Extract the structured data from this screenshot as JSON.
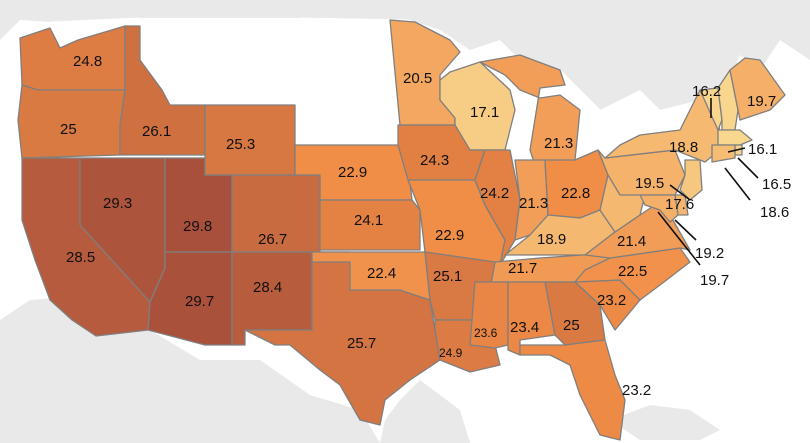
{
  "map": {
    "legend_scale": {
      "min": 16.1,
      "max": 29.8,
      "low_color": "#f8d78f",
      "high_color": "#a8503b"
    },
    "states": [
      {
        "id": "WA",
        "value": "24.8"
      },
      {
        "id": "OR",
        "value": "25"
      },
      {
        "id": "ID",
        "value": "26.1"
      },
      {
        "id": "CA",
        "value": "28.5"
      },
      {
        "id": "NV",
        "value": "29.3"
      },
      {
        "id": "UT",
        "value": "29.8"
      },
      {
        "id": "AZ",
        "value": "29.7"
      },
      {
        "id": "WY",
        "value": "25.3"
      },
      {
        "id": "CO",
        "value": "26.7"
      },
      {
        "id": "NM",
        "value": "28.4"
      },
      {
        "id": "TX",
        "value": "25.7"
      },
      {
        "id": "NE",
        "value": "22.9"
      },
      {
        "id": "KS",
        "value": "24.1"
      },
      {
        "id": "OK",
        "value": "22.4"
      },
      {
        "id": "MN",
        "value": "20.5"
      },
      {
        "id": "IA",
        "value": "24.3"
      },
      {
        "id": "MO",
        "value": "22.9"
      },
      {
        "id": "AR",
        "value": "25.1"
      },
      {
        "id": "LA",
        "value": "24.9"
      },
      {
        "id": "WI",
        "value": "17.1"
      },
      {
        "id": "IL",
        "value": "24.2"
      },
      {
        "id": "MI",
        "value": "21.3"
      },
      {
        "id": "IN",
        "value": "21.3"
      },
      {
        "id": "OH",
        "value": "22.8"
      },
      {
        "id": "KY",
        "value": "18.9"
      },
      {
        "id": "TN",
        "value": "21.7"
      },
      {
        "id": "MS",
        "value": "23.6"
      },
      {
        "id": "AL",
        "value": "23.4"
      },
      {
        "id": "GA",
        "value": "25"
      },
      {
        "id": "FL",
        "value": "23.2"
      },
      {
        "id": "SC",
        "value": "23.2"
      },
      {
        "id": "NC",
        "value": "22.5"
      },
      {
        "id": "VA",
        "value": "21.4"
      },
      {
        "id": "WV",
        "value": "18.9"
      },
      {
        "id": "PA",
        "value": "19.5"
      },
      {
        "id": "NY",
        "value": "18.8"
      },
      {
        "id": "VT",
        "value": "16.2"
      },
      {
        "id": "NH",
        "value": "16.2"
      },
      {
        "id": "ME",
        "value": "19.7"
      },
      {
        "id": "MA",
        "value": "16.1"
      },
      {
        "id": "RI",
        "value": "16.5"
      },
      {
        "id": "CT",
        "value": "18.6"
      },
      {
        "id": "NJ",
        "value": "17.6"
      },
      {
        "id": "DE",
        "value": "19.2"
      },
      {
        "id": "MD",
        "value": "19.7"
      }
    ]
  }
}
